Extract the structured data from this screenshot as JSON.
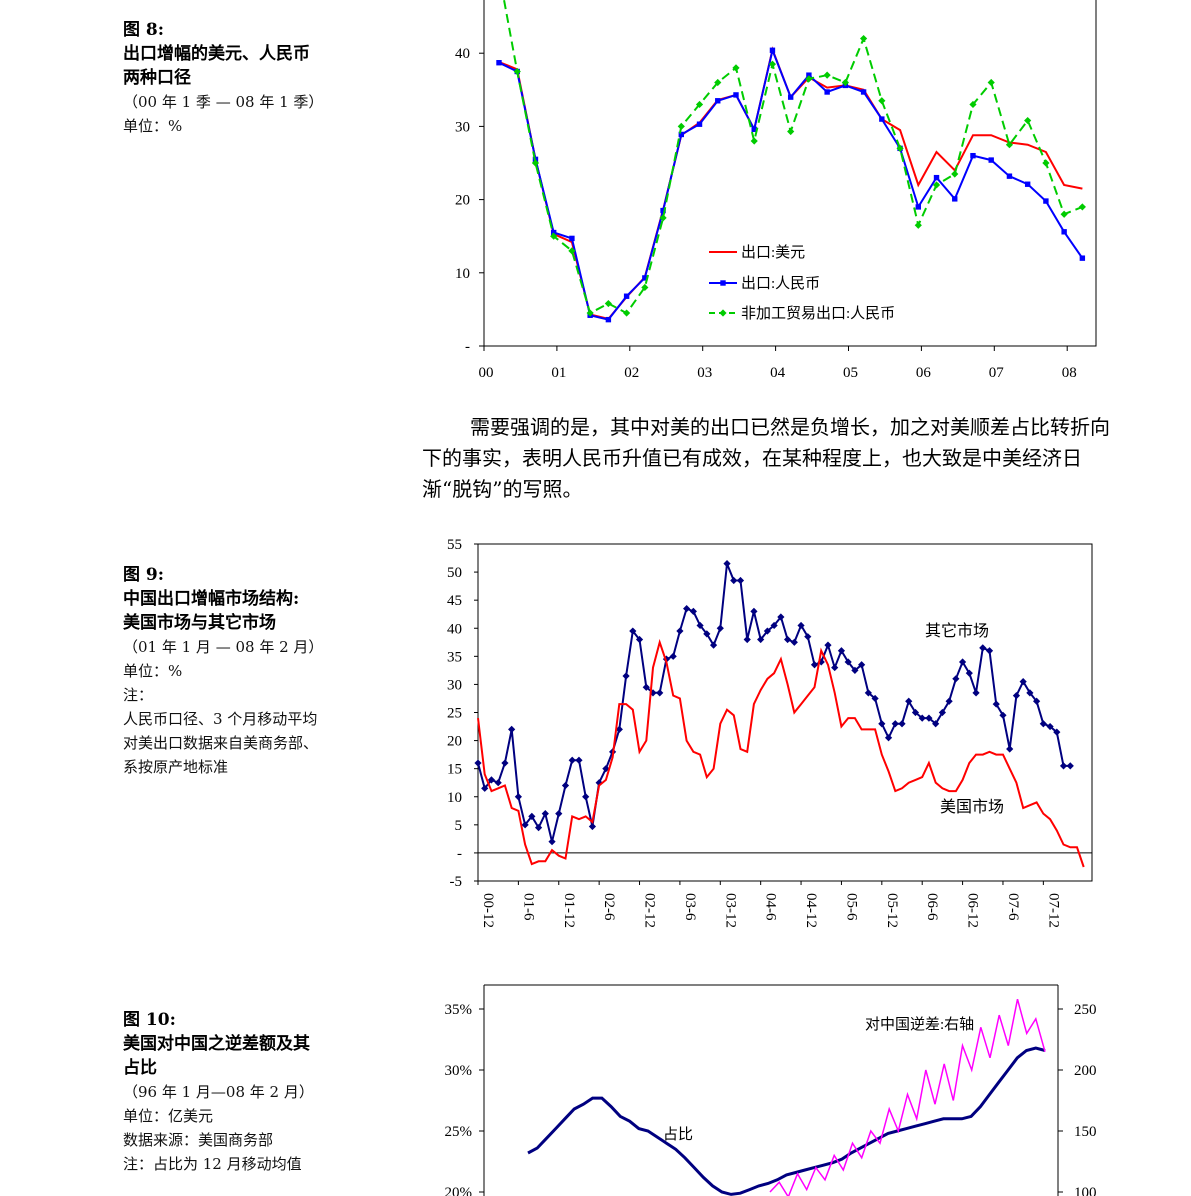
{
  "fig8": {
    "caption": {
      "fig": "图 8:",
      "title_line1": "出口增幅的美元、人民币",
      "title_line2": "两种口径",
      "period": "（00 年 1 季 — 08 年 1 季）",
      "unit": "单位：%"
    }
  },
  "paragraph": {
    "text": "需要强调的是，其中对美的出口已然是负增长，加之对美顺差占比转折向下的事实，表明人民币升值已有成效，在某种程度上，也大致是中美经济日渐“脱钩”的写照。"
  },
  "fig9": {
    "caption": {
      "fig": "图 9:",
      "title_line1": "中国出口增幅市场结构:",
      "title_line2": "美国市场与其它市场",
      "period": "（01 年 1 月 — 08 年 2 月）",
      "unit": "单位：%",
      "note_label": "注：",
      "note_line1": "人民币口径、3 个月移动平均",
      "note_line2": "对美出口数据来自美商务部、",
      "note_line3": "系按原产地标准"
    }
  },
  "fig10": {
    "caption": {
      "fig": "图 10:",
      "title_line1": "美国对中国之逆差额及其",
      "title_line2": "占比",
      "period": "（96 年 1 月—08 年 2 月）",
      "unit": "单位：亿美元",
      "source": "数据来源：美国商务部",
      "note": "注：占比为 12 月移动均值"
    }
  },
  "chart_data": [
    {
      "type": "line",
      "x": [
        "00Q1",
        "00Q2",
        "00Q3",
        "00Q4",
        "01Q1",
        "01Q2",
        "01Q3",
        "01Q4",
        "02Q1",
        "02Q2",
        "02Q3",
        "02Q4",
        "03Q1",
        "03Q2",
        "03Q3",
        "03Q4",
        "04Q1",
        "04Q2",
        "04Q3",
        "04Q4",
        "05Q1",
        "05Q2",
        "05Q3",
        "05Q4",
        "06Q1",
        "06Q2",
        "06Q3",
        "06Q4",
        "07Q1",
        "07Q2",
        "07Q3",
        "07Q4",
        "08Q1"
      ],
      "xtick_labels": [
        "00",
        "01",
        "02",
        "03",
        "04",
        "05",
        "06",
        "07",
        "08"
      ],
      "yticks": [
        "-",
        "10",
        "20",
        "30",
        "40"
      ],
      "ylim": [
        0,
        50
      ],
      "series": [
        {
          "name": "出口:美元",
          "color": "#ff0000",
          "marker": "none",
          "style": "solid",
          "values": [
            38.8,
            37.8,
            25.5,
            15.3,
            14.2,
            4.3,
            3.7,
            6.7,
            9.4,
            18.6,
            28.8,
            30.5,
            33.6,
            34.3,
            29.6,
            40.5,
            34.0,
            36.7,
            35.3,
            35.6,
            35.0,
            31.0,
            29.5,
            22.0,
            26.5,
            24.0,
            28.8,
            28.8,
            27.8,
            27.5,
            26.5,
            22.0,
            21.5
          ]
        },
        {
          "name": "出口:人民币",
          "color": "#0000ff",
          "marker": "square",
          "style": "solid",
          "values": [
            38.7,
            37.5,
            25.5,
            15.5,
            14.7,
            4.2,
            3.6,
            6.8,
            9.3,
            18.5,
            28.9,
            30.3,
            33.5,
            34.3,
            29.6,
            40.4,
            34.0,
            37.0,
            34.7,
            35.6,
            34.7,
            31.0,
            27.0,
            19.0,
            23.0,
            20.1,
            26.0,
            25.4,
            23.2,
            22.1,
            19.8,
            15.6,
            12.0
          ]
        },
        {
          "name": "非加工贸易出口:人民币",
          "color": "#00cc00",
          "marker": "diamond",
          "style": "dashed",
          "values": [
            51.0,
            37.5,
            25.0,
            15.0,
            13.0,
            4.5,
            5.8,
            4.5,
            8.0,
            17.5,
            30.0,
            33.0,
            36.0,
            38.0,
            28.0,
            38.5,
            29.3,
            36.5,
            37.0,
            36.0,
            42.0,
            33.5,
            27.0,
            16.5,
            22.0,
            23.5,
            33.0,
            36.0,
            27.5,
            30.8,
            25.0,
            18.0,
            19.0
          ]
        }
      ],
      "legend": "inside-bottom-right",
      "grid": false
    },
    {
      "type": "line",
      "xtick_labels": [
        "00-12",
        "01-6",
        "01-12",
        "02-6",
        "02-12",
        "03-6",
        "03-12",
        "04-6",
        "04-12",
        "05-6",
        "05-12",
        "06-6",
        "06-12",
        "07-6",
        "07-12"
      ],
      "yticks": [
        "-5",
        "-",
        "5",
        "10",
        "15",
        "20",
        "25",
        "30",
        "35",
        "40",
        "45",
        "50",
        "55"
      ],
      "ylim": [
        -5,
        55
      ],
      "annotations": [
        "其它市场",
        "美国市场"
      ],
      "series": [
        {
          "name": "其它市场",
          "color": "#000080",
          "marker": "diamond",
          "values": [
            16,
            11.5,
            13,
            12.5,
            16,
            22,
            10,
            5,
            6.5,
            4.5,
            7,
            2,
            7,
            12,
            16.5,
            16.5,
            10,
            4.7,
            12.5,
            15,
            18,
            22,
            31.5,
            39.5,
            38,
            29.5,
            28.5,
            28.5,
            34.5,
            35,
            39.5,
            43.5,
            43,
            40.5,
            39,
            37,
            40,
            51.5,
            48.5,
            48.5,
            38,
            43,
            38,
            39.5,
            40.5,
            42,
            38,
            37.5,
            40.5,
            38.5,
            33.5,
            34,
            37,
            33,
            36,
            34,
            32.5,
            33.5,
            28.5,
            27.5,
            23,
            20.5,
            23,
            23,
            27,
            25,
            24,
            24,
            23,
            25,
            27,
            31,
            34,
            32,
            28.5,
            36.5,
            36,
            26.5,
            24.5,
            18.5,
            28,
            30.5,
            28.5,
            27,
            23,
            22.5,
            21.5,
            15.5,
            15.5
          ]
        },
        {
          "name": "美国市场",
          "color": "#ff0000",
          "marker": "none",
          "values": [
            24,
            14,
            11,
            11.5,
            12,
            8,
            7.5,
            1.5,
            -2,
            -1.5,
            -1.5,
            0.5,
            -0.5,
            -1,
            6.5,
            6,
            6.5,
            5.5,
            12,
            13,
            17,
            26.5,
            26.5,
            25.5,
            18,
            20,
            33,
            37.5,
            34,
            28,
            27.5,
            20,
            18,
            17.5,
            13.5,
            15,
            23,
            25.5,
            24.5,
            18.5,
            18,
            26.5,
            29,
            31,
            32,
            34.5,
            30,
            25,
            26.5,
            28,
            29.5,
            36,
            33.5,
            28.5,
            22.5,
            24,
            24,
            22,
            22,
            22,
            17.5,
            14.5,
            11,
            11.5,
            12.5,
            13,
            13.5,
            16,
            12.5,
            11.5,
            11,
            11,
            13,
            16,
            17.5,
            17.5,
            18,
            17.5,
            17.5,
            15,
            12.5,
            8,
            8.5,
            9,
            7,
            6,
            4,
            1.5,
            1,
            1,
            -2.5
          ]
        }
      ],
      "grid": false
    },
    {
      "type": "line",
      "partial": true,
      "yticks_left": [
        "20%",
        "25%",
        "30%",
        "35%"
      ],
      "yticks_right": [
        "100",
        "150",
        "200",
        "250"
      ],
      "ylim_left": [
        0.2,
        0.35
      ],
      "ylim_right": [
        100,
        250
      ],
      "annotations": [
        "对中国逆差:右轴",
        "占比"
      ],
      "series": [
        {
          "name": "占比",
          "axis": "left",
          "color": "#000080",
          "values": [
            0.232,
            0.236,
            0.244,
            0.252,
            0.26,
            0.268,
            0.272,
            0.277,
            0.277,
            0.27,
            0.262,
            0.258,
            0.252,
            0.25,
            0.245,
            0.24,
            0.235,
            0.228,
            0.22,
            0.212,
            0.205,
            0.2,
            0.198,
            0.199,
            0.202,
            0.205,
            0.207,
            0.21,
            0.214,
            0.216,
            0.218,
            0.22,
            0.222,
            0.224,
            0.227,
            0.232,
            0.236,
            0.24,
            0.244,
            0.248,
            0.25,
            0.252,
            0.254,
            0.256,
            0.258,
            0.26,
            0.26,
            0.26,
            0.262,
            0.27,
            0.28,
            0.29,
            0.3,
            0.31,
            0.316,
            0.318,
            0.316
          ]
        },
        {
          "name": "对中国逆差",
          "axis": "right",
          "color": "#ff00ff",
          "values": [
            100,
            108,
            96,
            115,
            102,
            120,
            110,
            130,
            118,
            140,
            128,
            150,
            140,
            168,
            150,
            180,
            160,
            200,
            172,
            205,
            175,
            220,
            200,
            235,
            210,
            245,
            220,
            258,
            230,
            242,
            215
          ]
        }
      ]
    }
  ]
}
